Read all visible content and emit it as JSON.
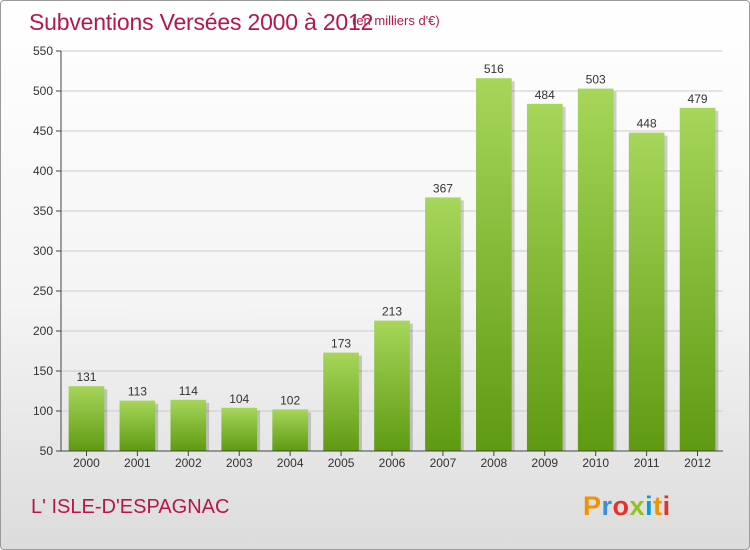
{
  "header": {
    "title": "Subventions Versées 2000 à 2012",
    "unit": "(en milliers d'€)"
  },
  "footer": {
    "place": "L' ISLE-D'ESPAGNAC",
    "brand": "Proxiti",
    "brand_colors": [
      "#f39200",
      "#3e8fd4",
      "#e6332a",
      "#95c11f",
      "#009ee0",
      "#f39200",
      "#e6332a"
    ]
  },
  "colors": {
    "title": "#b5174d",
    "bar_light": "#a6d65a",
    "bar_dark": "#5f9a12",
    "grid": "#cccccc",
    "axis": "#444444"
  },
  "chart_data": {
    "type": "bar",
    "title": "Subventions Versées 2000 à 2012",
    "xlabel": "",
    "ylabel": "",
    "categories": [
      "2000",
      "2001",
      "2002",
      "2003",
      "2004",
      "2005",
      "2006",
      "2007",
      "2008",
      "2009",
      "2010",
      "2011",
      "2012"
    ],
    "values": [
      131,
      113,
      114,
      104,
      102,
      173,
      213,
      367,
      516,
      484,
      503,
      448,
      479
    ],
    "ylim": [
      50,
      550
    ],
    "yticks": [
      50,
      100,
      150,
      200,
      250,
      300,
      350,
      400,
      450,
      500,
      550
    ],
    "grid": true,
    "data_labels": true
  }
}
